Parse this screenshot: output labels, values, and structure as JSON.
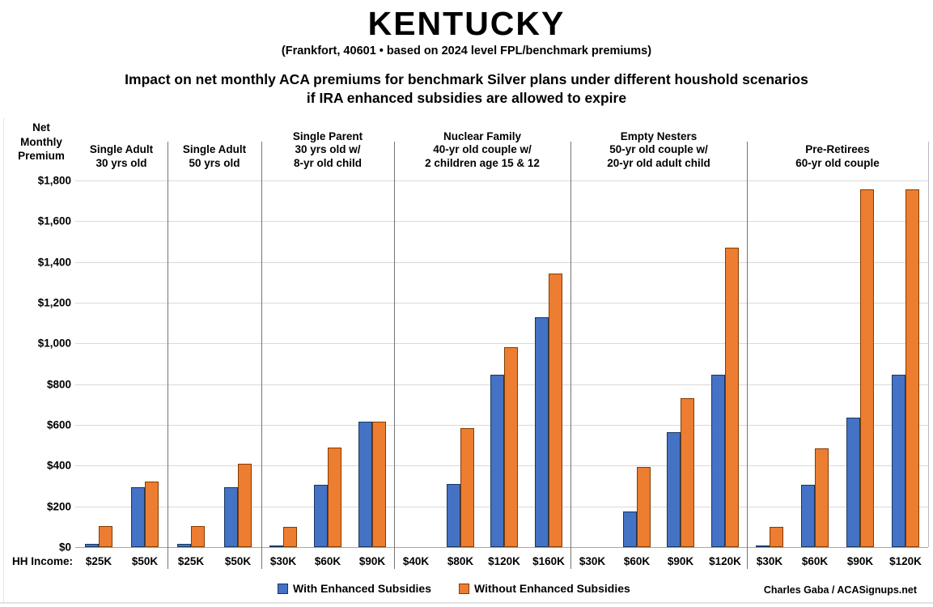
{
  "title": "KENTUCKY",
  "subtitle": "(Frankfort, 40601 • based on 2024 level FPL/benchmark premiums)",
  "heading_line1": "Impact on net monthly ACA premiums for benchmark Silver plans under different houshold scenarios",
  "heading_line2": "if IRA enhanced subsidies are allowed to expire",
  "credit": "Charles Gaba / ACASignups.net",
  "chart_data": {
    "type": "bar",
    "title": "Impact on net monthly ACA premiums for benchmark Silver plans under different houshold scenarios if IRA enhanced subsidies are allowed to expire",
    "ylabel": "Net Monthly Premium",
    "y_axis_title": "Net\nMonthly\nPremium",
    "x_axis_prefix_label": "HH Income:",
    "ylim": [
      0,
      1800
    ],
    "ytick_step": 200,
    "ytick_labels": [
      "$0",
      "$200",
      "$400",
      "$600",
      "$800",
      "$1,000",
      "$1,200",
      "$1,400",
      "$1,600",
      "$1,800"
    ],
    "grid": "horizontal",
    "legend_position": "bottom",
    "series": [
      {
        "key": "with",
        "name": "With Enhanced Subsidies",
        "color": "#4472C4",
        "border": "#17375E"
      },
      {
        "key": "without",
        "name": "Without Enhanced Subsidies",
        "color": "#ED7D31",
        "border": "#833C00"
      }
    ],
    "groups": [
      {
        "header": "Single Adult\n30 yrs old",
        "columns": [
          {
            "income": "$25K",
            "with": 15,
            "without": 105
          },
          {
            "income": "$50K",
            "with": 295,
            "without": 320
          }
        ]
      },
      {
        "header": "Single Adult\n50 yrs old",
        "columns": [
          {
            "income": "$25K",
            "with": 15,
            "without": 105
          },
          {
            "income": "$50K",
            "with": 295,
            "without": 410
          }
        ]
      },
      {
        "header": "Single Parent\n30 yrs old w/\n8-yr old child",
        "columns": [
          {
            "income": "$30K",
            "with": 5,
            "without": 100
          },
          {
            "income": "$60K",
            "with": 305,
            "without": 490
          },
          {
            "income": "$90K",
            "with": 615,
            "without": 615
          }
        ]
      },
      {
        "header": "Nuclear Family\n40-yr old couple w/\n2 children age 15 & 12",
        "columns": [
          {
            "income": "$40K",
            "with": 0,
            "without": 0
          },
          {
            "income": "$80K",
            "with": 310,
            "without": 585
          },
          {
            "income": "$120K",
            "with": 845,
            "without": 980
          },
          {
            "income": "$160K",
            "with": 1130,
            "without": 1345
          }
        ]
      },
      {
        "header": "Empty Nesters\n50-yr old couple w/\n20-yr old adult child",
        "columns": [
          {
            "income": "$30K",
            "with": 0,
            "without": 0
          },
          {
            "income": "$60K",
            "with": 175,
            "without": 395
          },
          {
            "income": "$90K",
            "with": 565,
            "without": 730
          },
          {
            "income": "$120K",
            "with": 845,
            "without": 1470
          }
        ]
      },
      {
        "header": "Pre-Retirees\n60-yr old couple",
        "columns": [
          {
            "income": "$30K",
            "with": 5,
            "without": 100
          },
          {
            "income": "$60K",
            "with": 305,
            "without": 485
          },
          {
            "income": "$90K",
            "with": 635,
            "without": 1755
          },
          {
            "income": "$120K",
            "with": 845,
            "without": 1755
          }
        ]
      }
    ]
  }
}
